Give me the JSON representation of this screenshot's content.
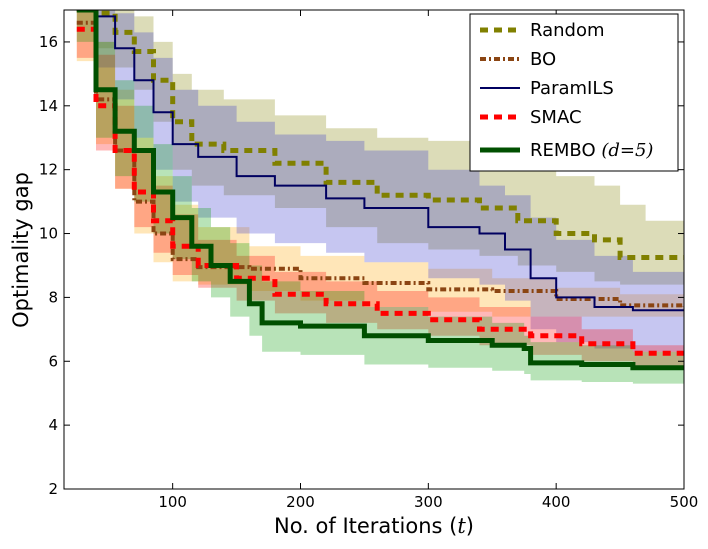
{
  "chart_data": {
    "type": "line",
    "xlabel": "No. of Iterations",
    "xlabel_var": "t",
    "ylabel": "Optimality gap",
    "xlim": [
      15,
      500
    ],
    "ylim": [
      2,
      17
    ],
    "xticks": [
      100,
      200,
      300,
      400,
      500
    ],
    "yticks": [
      2,
      4,
      6,
      8,
      10,
      12,
      14,
      16
    ],
    "grid": false,
    "legend_position": "top-right",
    "series": [
      {
        "name": "Random",
        "color": "#808000",
        "style": "dashed",
        "x": [
          25,
          40,
          55,
          70,
          85,
          100,
          115,
          140,
          180,
          220,
          260,
          300,
          340,
          370,
          400,
          430,
          450,
          470,
          500
        ],
        "y": [
          17.0,
          16.9,
          16.3,
          15.7,
          14.8,
          13.5,
          12.8,
          12.6,
          12.2,
          11.6,
          11.2,
          11.05,
          10.8,
          10.4,
          10.0,
          9.8,
          9.25,
          9.25,
          9.25
        ],
        "upper": [
          17.0,
          17.0,
          17.0,
          16.8,
          16.0,
          15.0,
          14.5,
          14.2,
          13.7,
          13.3,
          13.0,
          12.9,
          12.7,
          12.3,
          11.8,
          11.5,
          10.9,
          10.4,
          10.2
        ],
        "lower": [
          17.0,
          15.8,
          15.2,
          14.5,
          13.5,
          12.0,
          11.5,
          11.2,
          10.8,
          10.2,
          9.7,
          9.5,
          9.3,
          9.0,
          8.8,
          8.5,
          8.4,
          8.4,
          8.4
        ]
      },
      {
        "name": "BO",
        "color": "#8b4513",
        "style": "dash-dot",
        "x": [
          25,
          40,
          55,
          70,
          85,
          100,
          120,
          160,
          200,
          250,
          300,
          350,
          400,
          450,
          500
        ],
        "y": [
          16.6,
          14.2,
          12.6,
          11.0,
          10.0,
          9.2,
          8.95,
          8.9,
          8.6,
          8.45,
          8.25,
          8.2,
          7.95,
          7.75,
          7.7
        ],
        "upper": [
          17.0,
          16.0,
          14.5,
          13.0,
          11.8,
          10.9,
          10.2,
          9.6,
          9.3,
          9.1,
          8.9,
          8.6,
          8.3,
          8.1,
          7.9
        ],
        "lower": [
          15.4,
          12.8,
          11.4,
          10.0,
          9.1,
          8.5,
          8.4,
          8.2,
          7.9,
          7.7,
          7.55,
          7.4,
          7.4,
          7.4,
          7.4
        ]
      },
      {
        "name": "ParamILS",
        "color": "#000060",
        "style": "solid",
        "x": [
          25,
          40,
          55,
          70,
          85,
          100,
          120,
          150,
          180,
          220,
          250,
          300,
          340,
          360,
          380,
          400,
          430,
          460,
          500
        ],
        "y": [
          17.0,
          16.8,
          15.8,
          14.8,
          13.8,
          12.8,
          12.4,
          11.8,
          11.5,
          11.1,
          10.8,
          10.2,
          10.0,
          9.5,
          8.6,
          8.0,
          7.7,
          7.6,
          7.6
        ],
        "upper": [
          17.0,
          17.0,
          16.9,
          16.3,
          15.5,
          14.5,
          14.0,
          13.5,
          13.1,
          12.9,
          12.6,
          12.0,
          11.5,
          11.2,
          10.5,
          9.8,
          9.3,
          8.8,
          8.6
        ],
        "lower": [
          17.0,
          15.2,
          14.2,
          13.0,
          12.0,
          11.0,
          10.5,
          10.0,
          9.7,
          9.4,
          9.1,
          8.6,
          8.4,
          7.9,
          7.0,
          6.6,
          6.4,
          6.3,
          6.2
        ]
      },
      {
        "name": "SMAC",
        "color": "#ff0000",
        "style": "dashed",
        "x": [
          25,
          40,
          55,
          70,
          85,
          100,
          120,
          150,
          180,
          220,
          260,
          300,
          340,
          380,
          420,
          460,
          500
        ],
        "y": [
          16.4,
          14.0,
          12.6,
          11.3,
          10.4,
          9.6,
          9.0,
          8.6,
          8.1,
          7.8,
          7.5,
          7.3,
          7.0,
          6.8,
          6.55,
          6.25,
          6.2
        ],
        "upper": [
          17.0,
          15.6,
          14.0,
          12.6,
          11.5,
          10.6,
          9.8,
          9.3,
          8.8,
          8.5,
          8.2,
          8.0,
          7.7,
          7.4,
          7.0,
          6.5,
          6.4
        ],
        "lower": [
          15.5,
          12.6,
          11.4,
          10.2,
          9.4,
          8.7,
          8.3,
          7.9,
          7.5,
          7.2,
          7.0,
          6.8,
          6.5,
          6.2,
          6.0,
          5.85,
          5.8
        ]
      },
      {
        "name": "REMBO",
        "name_math": "(d=5)",
        "color": "#005000",
        "style": "solid-thick",
        "x": [
          25,
          40,
          55,
          70,
          85,
          100,
          115,
          130,
          145,
          160,
          170,
          200,
          250,
          300,
          350,
          375,
          380,
          420,
          460,
          500
        ],
        "y": [
          17.0,
          14.5,
          13.2,
          12.6,
          11.3,
          10.5,
          9.6,
          9.0,
          8.5,
          7.8,
          7.2,
          7.1,
          6.8,
          6.65,
          6.5,
          6.4,
          5.95,
          5.9,
          5.8,
          5.75
        ],
        "upper": [
          17.0,
          16.0,
          14.8,
          14.0,
          12.8,
          11.8,
          10.8,
          10.2,
          9.7,
          9.0,
          8.5,
          8.2,
          7.7,
          7.4,
          7.2,
          6.8,
          6.6,
          6.5,
          6.3,
          6.2
        ],
        "lower": [
          16.0,
          13.0,
          11.8,
          11.0,
          10.0,
          9.2,
          8.5,
          8.0,
          7.4,
          6.8,
          6.3,
          6.2,
          5.9,
          5.8,
          5.7,
          5.6,
          5.4,
          5.35,
          5.3,
          5.25
        ]
      }
    ]
  }
}
